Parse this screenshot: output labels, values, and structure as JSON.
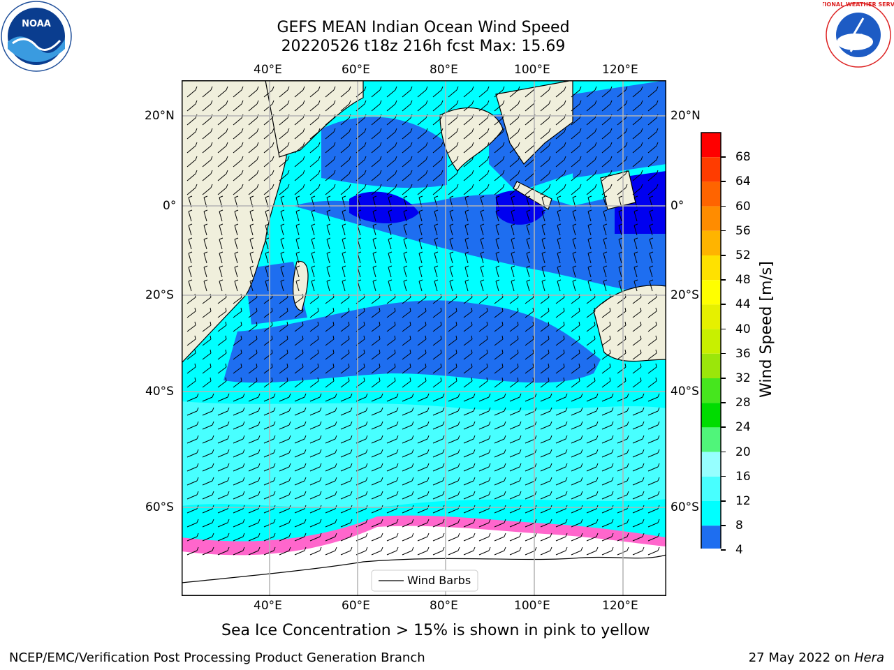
{
  "title": {
    "line1": "GEFS MEAN Indian Ocean Wind Speed",
    "line2": "20220526 t18z 216h fcst   Max: 15.69"
  },
  "map": {
    "lon_ticks": [
      "40°E",
      "60°E",
      "80°E",
      "100°E",
      "120°E"
    ],
    "lat_ticks": [
      "20°N",
      "0°",
      "20°S",
      "40°S",
      "60°S"
    ],
    "lon_range": [
      20,
      130
    ],
    "lat_range": [
      -74,
      28
    ],
    "legend_label": "Wind Barbs",
    "colors": {
      "land": "#f0efdc",
      "ice": "#ffffff",
      "grid": "#b4b4b4"
    }
  },
  "colorbar": {
    "label": "Wind Speed [m/s]",
    "ticks": [
      "4",
      "8",
      "12",
      "16",
      "20",
      "24",
      "28",
      "32",
      "36",
      "40",
      "44",
      "48",
      "52",
      "56",
      "60",
      "64",
      "68"
    ],
    "colors": [
      "#1e6ef0",
      "#00ffff",
      "#48ffff",
      "#96ffff",
      "#50f57a",
      "#00dc00",
      "#46e61e",
      "#9be60a",
      "#c8f000",
      "#e6f000",
      "#ffff00",
      "#ffe100",
      "#ffb400",
      "#ff8c00",
      "#ff6400",
      "#ff3c00",
      "#ff0000"
    ],
    "extend_color": "#0000f0"
  },
  "logos": {
    "noaa_text": "NOAA",
    "nws_text": "NATIONAL WEATHER SERVICE"
  },
  "note": "Sea Ice Concentration > 15% is shown in pink to yellow",
  "footer": {
    "left": "NCEP/EMC/Verification Post Processing Product Generation Branch",
    "right_prefix": "27 May 2022 on ",
    "right_host": "Hera"
  }
}
